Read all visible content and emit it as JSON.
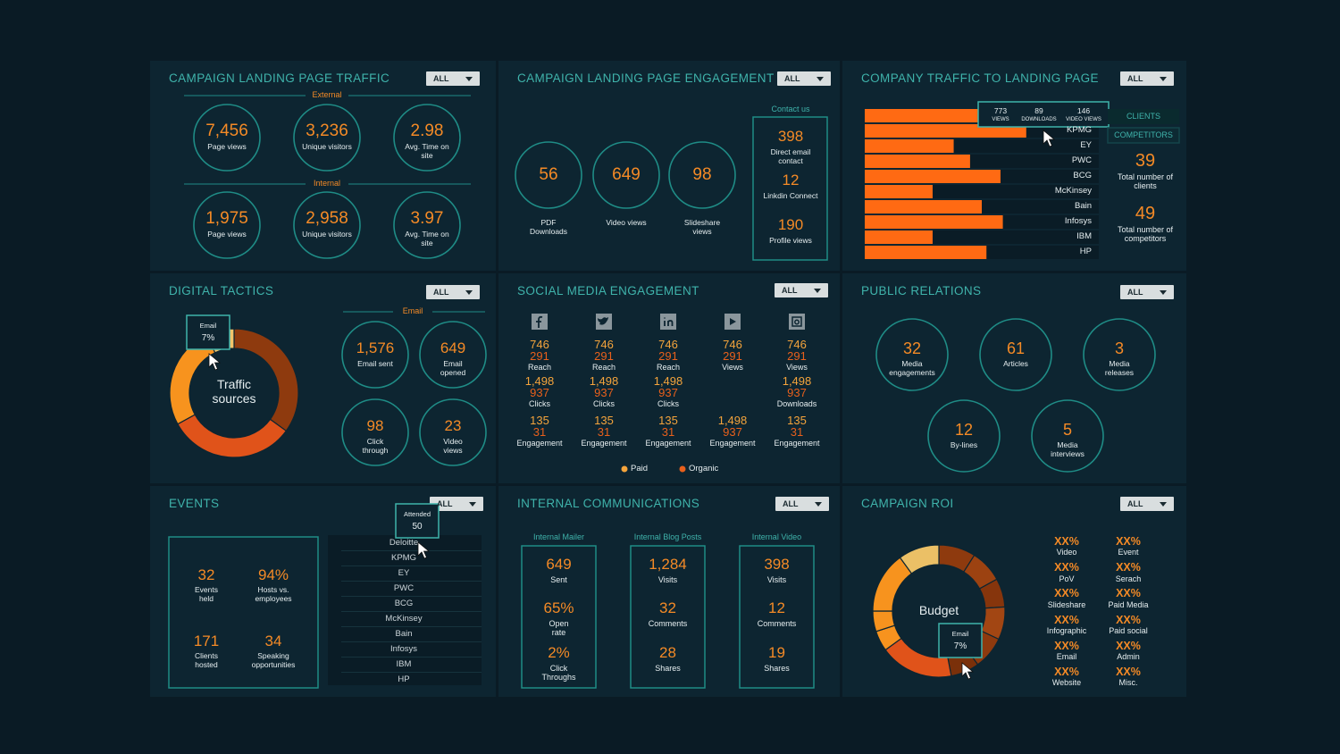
{
  "traffic": {
    "title": "CAMPAIGN LANDING PAGE TRAFFIC",
    "filter": "ALL",
    "groups": [
      {
        "label": "External",
        "metrics": [
          {
            "value": "7,456",
            "label": "Page views"
          },
          {
            "value": "3,236",
            "label": "Unique visitors"
          },
          {
            "value": "2.98",
            "label": "Avg. Time on site"
          }
        ]
      },
      {
        "label": "Internal",
        "metrics": [
          {
            "value": "1,975",
            "label": "Page views"
          },
          {
            "value": "2,958",
            "label": "Unique visitors"
          },
          {
            "value": "3.97",
            "label": "Avg. Time on site"
          }
        ]
      }
    ]
  },
  "engagement": {
    "title": "CAMPAIGN LANDING PAGE ENGAGEMENT",
    "filter": "ALL",
    "metrics": [
      {
        "value": "56",
        "label": "PDF Downloads"
      },
      {
        "value": "649",
        "label": "Video views"
      },
      {
        "value": "98",
        "label": "Slideshare views"
      }
    ],
    "contact": {
      "heading": "Contact us",
      "items": [
        {
          "value": "398",
          "label": "Direct email contact"
        },
        {
          "value": "12",
          "label": "Linkdin Connect"
        },
        {
          "value": "190",
          "label": "Profile views"
        }
      ]
    }
  },
  "company": {
    "title": "COMPANY TRAFFIC TO LANDING PAGE",
    "filter": "ALL",
    "tooltip": [
      {
        "value": "773",
        "label": "VIEWS"
      },
      {
        "value": "89",
        "label": "DOWNLOADS"
      },
      {
        "value": "146",
        "label": "VIDEO VIEWS"
      }
    ],
    "legend": [
      "CLIENTS",
      "COMPETITORS"
    ],
    "stats": [
      {
        "value": "39",
        "label": "Total number of clients"
      },
      {
        "value": "49",
        "label": "Total number of competitors"
      }
    ]
  },
  "digital": {
    "title": "DIGITAL TACTICS",
    "filter": "ALL",
    "section": "Email",
    "metrics": [
      {
        "value": "1,576",
        "label": "Email sent"
      },
      {
        "value": "649",
        "label": "Email opened"
      },
      {
        "value": "98",
        "label": "Click through"
      },
      {
        "value": "23",
        "label": "Video views"
      }
    ]
  },
  "social": {
    "title": "SOCIAL MEDIA ENGAGEMENT",
    "filter": "ALL",
    "channels": [
      {
        "rows": [
          {
            "paid": "746",
            "organic": "291",
            "label": "Reach"
          },
          {
            "paid": "1,498",
            "organic": "937",
            "label": "Clicks"
          },
          {
            "paid": "135",
            "organic": "31",
            "label": "Engagement"
          }
        ]
      },
      {
        "rows": [
          {
            "paid": "746",
            "organic": "291",
            "label": "Reach"
          },
          {
            "paid": "1,498",
            "organic": "937",
            "label": "Clicks"
          },
          {
            "paid": "135",
            "organic": "31",
            "label": "Engagement"
          }
        ]
      },
      {
        "rows": [
          {
            "paid": "746",
            "organic": "291",
            "label": "Reach"
          },
          {
            "paid": "1,498",
            "organic": "937",
            "label": "Clicks"
          },
          {
            "paid": "135",
            "organic": "31",
            "label": "Engagement"
          }
        ]
      },
      {
        "rows": [
          {
            "paid": "746",
            "organic": "291",
            "label": "Views"
          },
          null,
          {
            "paid": "1,498",
            "organic": "937",
            "label": "Engagement"
          }
        ]
      },
      {
        "rows": [
          {
            "paid": "746",
            "organic": "291",
            "label": "Views"
          },
          {
            "paid": "1,498",
            "organic": "937",
            "label": "Downloads"
          },
          {
            "paid": "135",
            "organic": "31",
            "label": "Engagement"
          }
        ]
      }
    ],
    "legend": {
      "paid": "Paid",
      "organic": "Organic"
    },
    "paid_color": "#f4a43c",
    "organic_color": "#e8601c"
  },
  "pr": {
    "title": "PUBLIC RELATIONS",
    "filter": "ALL",
    "metrics": [
      {
        "value": "32",
        "label": "Media engagements"
      },
      {
        "value": "61",
        "label": "Articles"
      },
      {
        "value": "3",
        "label": "Media releases"
      },
      {
        "value": "12",
        "label": "By-lines"
      },
      {
        "value": "5",
        "label": "Media interviews"
      }
    ]
  },
  "events": {
    "title": "EVENTS",
    "filter": "ALL",
    "tooltip": {
      "label": "Attended",
      "value": "50"
    },
    "stats": [
      {
        "value": "32",
        "label": "Events held"
      },
      {
        "value": "94%",
        "label": "Hosts vs. employees"
      },
      {
        "value": "171",
        "label": "Clients hosted"
      },
      {
        "value": "34",
        "label": "Speaking opportunities"
      }
    ],
    "list": [
      "Deloitte",
      "KPMG",
      "EY",
      "PWC",
      "BCG",
      "McKinsey",
      "Bain",
      "Infosys",
      "IBM",
      "HP"
    ]
  },
  "internal": {
    "title": "INTERNAL COMMUNICATIONS",
    "filter": "ALL",
    "columns": [
      {
        "heading": "Internal Mailer",
        "items": [
          {
            "value": "649",
            "label": "Sent"
          },
          {
            "value": "65%",
            "label": "Open rate"
          },
          {
            "value": "2%",
            "label": "Click Throughs"
          }
        ]
      },
      {
        "heading": "Internal Blog Posts",
        "items": [
          {
            "value": "1,284",
            "label": "Visits"
          },
          {
            "value": "32",
            "label": "Comments"
          },
          {
            "value": "28",
            "label": "Shares"
          }
        ]
      },
      {
        "heading": "Internal Video",
        "items": [
          {
            "value": "398",
            "label": "Visits"
          },
          {
            "value": "12",
            "label": "Comments"
          },
          {
            "value": "19",
            "label": "Shares"
          }
        ]
      }
    ]
  },
  "roi": {
    "title": "CAMPAIGN ROI",
    "filter": "ALL",
    "legend": [
      {
        "value": "XX%",
        "label": "Video"
      },
      {
        "value": "XX%",
        "label": "Event"
      },
      {
        "value": "XX%",
        "label": "PoV"
      },
      {
        "value": "XX%",
        "label": "Serach"
      },
      {
        "value": "XX%",
        "label": "Slideshare"
      },
      {
        "value": "XX%",
        "label": "Paid Media"
      },
      {
        "value": "XX%",
        "label": "Infographic"
      },
      {
        "value": "XX%",
        "label": "Paid social"
      },
      {
        "value": "XX%",
        "label": "Email"
      },
      {
        "value": "XX%",
        "label": "Admin"
      },
      {
        "value": "XX%",
        "label": "Website"
      },
      {
        "value": "XX%",
        "label": "Misc."
      }
    ]
  },
  "chart_data": [
    {
      "type": "bar",
      "orientation": "horizontal",
      "categories": [
        null,
        "KPMG",
        "EY",
        "PWC",
        "BCG",
        "McKinsey",
        "Bain",
        "Infosys",
        "IBM",
        "HP"
      ],
      "values": [
        80,
        69,
        38,
        45,
        58,
        29,
        50,
        59,
        29,
        52
      ],
      "xlim": [
        0,
        100
      ],
      "color": "#ff6a13"
    },
    {
      "type": "pie",
      "title": "Traffic sources",
      "donut": true,
      "categories": [
        null,
        null,
        null,
        "Email"
      ],
      "values": [
        35,
        32,
        26,
        7
      ],
      "value_labels": [
        null,
        null,
        null,
        "7%"
      ],
      "colors": [
        "#8e3a0e",
        "#e0531a",
        "#f7931e",
        "#f2c46b"
      ]
    },
    {
      "type": "pie",
      "title": "Budget",
      "donut": true,
      "categories": [
        null,
        null,
        null,
        null,
        null,
        "Email",
        null,
        null,
        null,
        null,
        null
      ],
      "values": [
        9,
        8,
        7,
        8,
        8,
        7,
        18,
        5,
        5,
        15,
        10
      ],
      "value_labels": [
        null,
        null,
        null,
        null,
        null,
        "7%",
        null,
        null,
        null,
        null,
        null
      ],
      "colors": [
        "#8e3a0e",
        "#9c4211",
        "#86350c",
        "#a24613",
        "#8e3a0e",
        "#7a300a",
        "#e0531a",
        "#f7931e",
        "#f7931e",
        "#f7931e",
        "#ebc066"
      ]
    }
  ]
}
